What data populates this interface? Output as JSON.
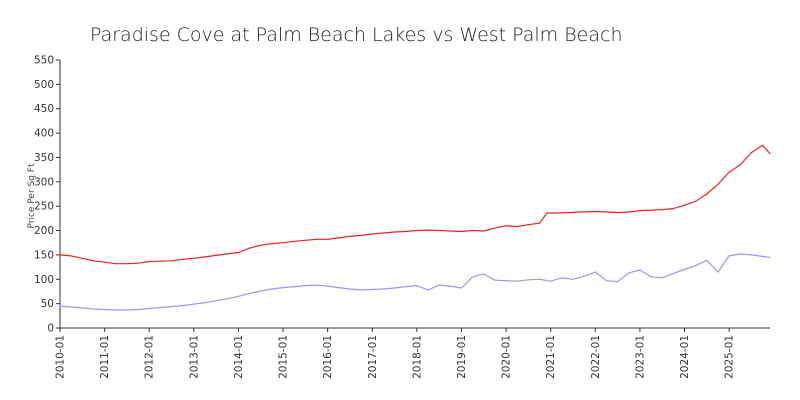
{
  "chart_data": {
    "type": "line",
    "title": "Paradise Cove at Palm Beach Lakes vs West Palm Beach",
    "xlabel": "",
    "ylabel": "Price Per Sq Ft",
    "ylim": [
      0,
      550
    ],
    "yticks": [
      0,
      50,
      100,
      150,
      200,
      250,
      300,
      350,
      400,
      450,
      500,
      550
    ],
    "xticks": [
      "2010-01",
      "2011-01",
      "2012-01",
      "2013-01",
      "2014-01",
      "2015-01",
      "2016-01",
      "2017-01",
      "2018-01",
      "2019-01",
      "2020-01",
      "2021-01",
      "2022-01",
      "2023-01",
      "2024-01",
      "2025-01"
    ],
    "grid": false,
    "legend": "none",
    "series": [
      {
        "color": "#ee2222",
        "points": [
          [
            "2010-01",
            150
          ],
          [
            "2010-04",
            148
          ],
          [
            "2010-07",
            143
          ],
          [
            "2010-10",
            138
          ],
          [
            "2011-01",
            135
          ],
          [
            "2011-04",
            132
          ],
          [
            "2011-07",
            132
          ],
          [
            "2011-10",
            133
          ],
          [
            "2012-01",
            136
          ],
          [
            "2012-04",
            137
          ],
          [
            "2012-07",
            138
          ],
          [
            "2012-10",
            141
          ],
          [
            "2013-01",
            143
          ],
          [
            "2013-04",
            146
          ],
          [
            "2013-07",
            149
          ],
          [
            "2013-10",
            152
          ],
          [
            "2014-01",
            155
          ],
          [
            "2014-04",
            164
          ],
          [
            "2014-07",
            170
          ],
          [
            "2014-10",
            173
          ],
          [
            "2015-01",
            175
          ],
          [
            "2015-04",
            178
          ],
          [
            "2015-07",
            180
          ],
          [
            "2015-10",
            182
          ],
          [
            "2016-01",
            182
          ],
          [
            "2016-04",
            185
          ],
          [
            "2016-07",
            188
          ],
          [
            "2016-10",
            190
          ],
          [
            "2017-01",
            193
          ],
          [
            "2017-04",
            195
          ],
          [
            "2017-07",
            197
          ],
          [
            "2017-10",
            198
          ],
          [
            "2018-01",
            200
          ],
          [
            "2018-04",
            201
          ],
          [
            "2018-07",
            200
          ],
          [
            "2018-10",
            199
          ],
          [
            "2019-01",
            198
          ],
          [
            "2019-04",
            200
          ],
          [
            "2019-07",
            199
          ],
          [
            "2019-10",
            205
          ],
          [
            "2020-01",
            210
          ],
          [
            "2020-04",
            208
          ],
          [
            "2020-07",
            212
          ],
          [
            "2020-10",
            215
          ],
          [
            "2020-12",
            236
          ],
          [
            "2021-03",
            236
          ],
          [
            "2021-06",
            237
          ],
          [
            "2021-09",
            238
          ],
          [
            "2022-01",
            239
          ],
          [
            "2022-04",
            238
          ],
          [
            "2022-07",
            237
          ],
          [
            "2022-10",
            238
          ],
          [
            "2023-01",
            241
          ],
          [
            "2023-04",
            242
          ],
          [
            "2023-07",
            243
          ],
          [
            "2023-10",
            245
          ],
          [
            "2024-01",
            252
          ],
          [
            "2024-04",
            260
          ],
          [
            "2024-07",
            275
          ],
          [
            "2024-10",
            295
          ],
          [
            "2025-01",
            320
          ],
          [
            "2025-04",
            335
          ],
          [
            "2025-07",
            360
          ],
          [
            "2025-10",
            375
          ],
          [
            "2025-12",
            358
          ]
        ]
      },
      {
        "color": "#9999ee",
        "points": [
          [
            "2010-01",
            45
          ],
          [
            "2010-04",
            43
          ],
          [
            "2010-07",
            41
          ],
          [
            "2010-10",
            39
          ],
          [
            "2011-01",
            38
          ],
          [
            "2011-04",
            37
          ],
          [
            "2011-07",
            37
          ],
          [
            "2011-10",
            38
          ],
          [
            "2012-01",
            40
          ],
          [
            "2012-04",
            42
          ],
          [
            "2012-07",
            44
          ],
          [
            "2012-10",
            46
          ],
          [
            "2013-01",
            49
          ],
          [
            "2013-04",
            52
          ],
          [
            "2013-07",
            56
          ],
          [
            "2013-10",
            60
          ],
          [
            "2014-01",
            65
          ],
          [
            "2014-04",
            71
          ],
          [
            "2014-07",
            76
          ],
          [
            "2014-10",
            80
          ],
          [
            "2015-01",
            83
          ],
          [
            "2015-04",
            85
          ],
          [
            "2015-07",
            87
          ],
          [
            "2015-10",
            88
          ],
          [
            "2016-01",
            86
          ],
          [
            "2016-04",
            83
          ],
          [
            "2016-07",
            80
          ],
          [
            "2016-10",
            78
          ],
          [
            "2017-01",
            79
          ],
          [
            "2017-04",
            80
          ],
          [
            "2017-07",
            82
          ],
          [
            "2017-10",
            85
          ],
          [
            "2018-01",
            87
          ],
          [
            "2018-04",
            78
          ],
          [
            "2018-07",
            88
          ],
          [
            "2018-10",
            86
          ],
          [
            "2019-01",
            82
          ],
          [
            "2019-04",
            105
          ],
          [
            "2019-07",
            111
          ],
          [
            "2019-10",
            98
          ],
          [
            "2020-01",
            97
          ],
          [
            "2020-04",
            96
          ],
          [
            "2020-07",
            99
          ],
          [
            "2020-10",
            100
          ],
          [
            "2021-01",
            96
          ],
          [
            "2021-04",
            103
          ],
          [
            "2021-07",
            100
          ],
          [
            "2021-10",
            106
          ],
          [
            "2022-01",
            115
          ],
          [
            "2022-04",
            97
          ],
          [
            "2022-07",
            95
          ],
          [
            "2022-10",
            113
          ],
          [
            "2023-01",
            119
          ],
          [
            "2023-04",
            105
          ],
          [
            "2023-07",
            103
          ],
          [
            "2023-10",
            112
          ],
          [
            "2024-01",
            120
          ],
          [
            "2024-04",
            128
          ],
          [
            "2024-07",
            139
          ],
          [
            "2024-10",
            115
          ],
          [
            "2025-01",
            148
          ],
          [
            "2025-04",
            152
          ],
          [
            "2025-07",
            150
          ],
          [
            "2025-10",
            147
          ],
          [
            "2025-12",
            145
          ]
        ]
      }
    ]
  }
}
